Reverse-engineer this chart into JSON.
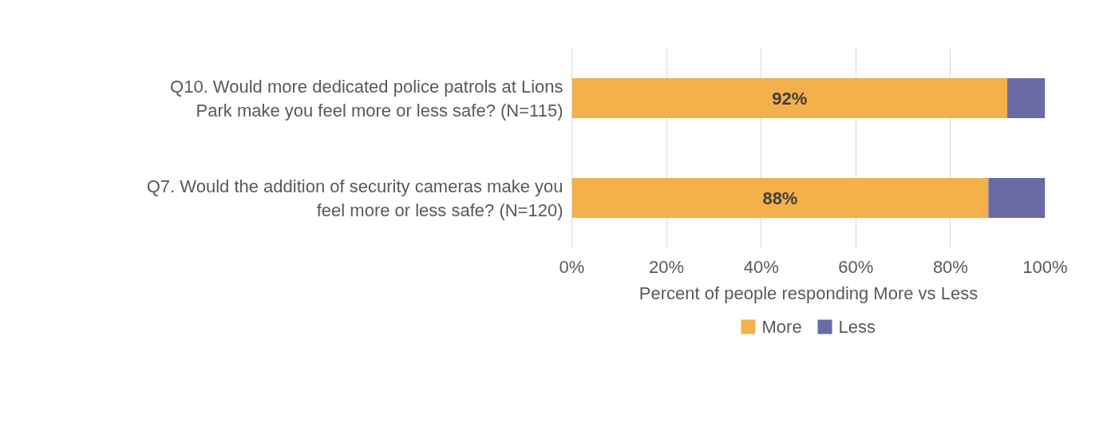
{
  "chart_data": {
    "type": "bar",
    "orientation": "horizontal",
    "stacked": true,
    "categories": [
      "Q10. Would more dedicated police patrols at Lions Park make you feel more or less safe? (N=115)",
      "Q7. Would the addition of security cameras make you feel more or less safe? (N=120)"
    ],
    "series": [
      {
        "name": "More",
        "color": "#f4b04b",
        "values": [
          92,
          88
        ],
        "value_labels": [
          "92%",
          "88%"
        ]
      },
      {
        "name": "Less",
        "color": "#6a6aa5",
        "values": [
          8,
          12
        ]
      }
    ],
    "xlim": [
      0,
      100
    ],
    "xticks": [
      {
        "value": 0,
        "label": "0%"
      },
      {
        "value": 20,
        "label": "20%"
      },
      {
        "value": 40,
        "label": "40%"
      },
      {
        "value": 60,
        "label": "60%"
      },
      {
        "value": 80,
        "label": "80%"
      },
      {
        "value": 100,
        "label": "100%"
      }
    ],
    "xlabel": "Percent of people responding More vs Less",
    "grid": "x",
    "legend": "bottom"
  }
}
